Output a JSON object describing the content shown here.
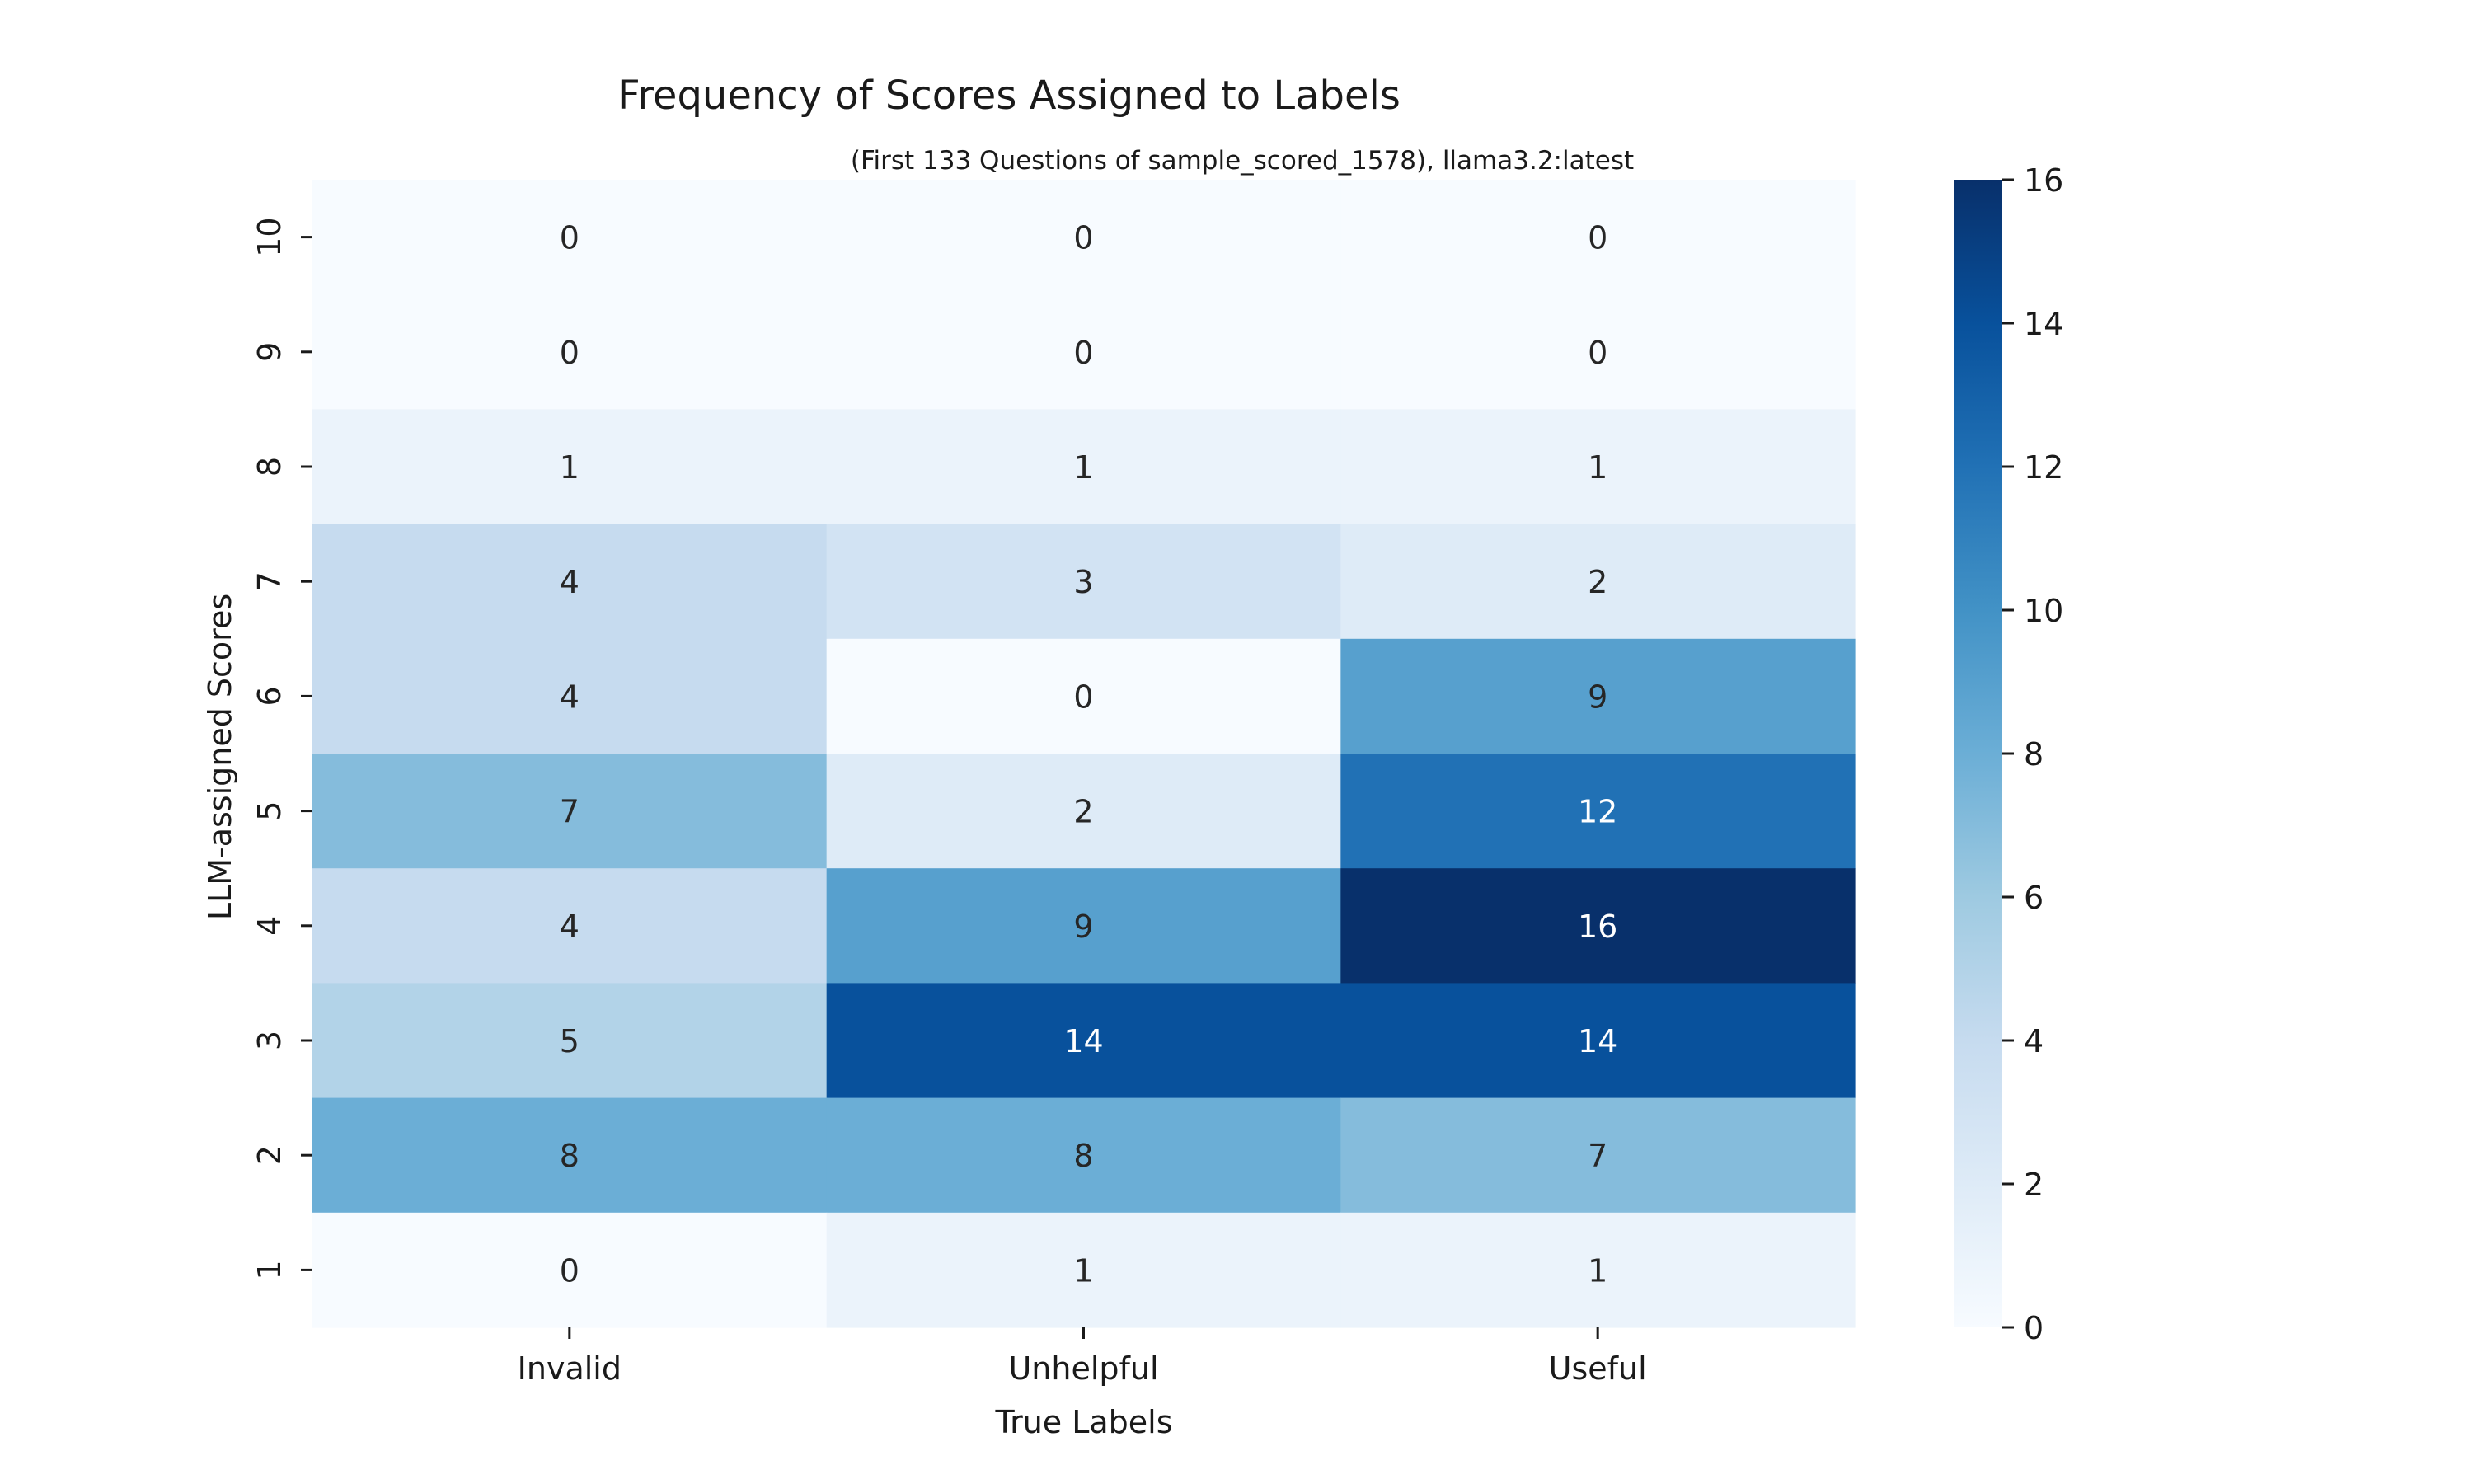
{
  "chart_data": {
    "type": "heatmap",
    "title": "Frequency of Scores Assigned to Labels",
    "subtitle": "(First 133 Questions of sample_scored_1578), llama3.2:latest",
    "xlabel": "True Labels",
    "ylabel": "LLM-assigned Scores",
    "x_categories": [
      "Invalid",
      "Unhelpful",
      "Useful"
    ],
    "y_categories": [
      "10",
      "9",
      "8",
      "7",
      "6",
      "5",
      "4",
      "3",
      "2",
      "1"
    ],
    "values": [
      [
        0,
        0,
        0
      ],
      [
        0,
        0,
        0
      ],
      [
        1,
        1,
        1
      ],
      [
        4,
        3,
        2
      ],
      [
        4,
        0,
        9
      ],
      [
        7,
        2,
        12
      ],
      [
        4,
        9,
        16
      ],
      [
        5,
        14,
        14
      ],
      [
        8,
        8,
        7
      ],
      [
        0,
        1,
        1
      ]
    ],
    "colormap": "Blues",
    "colorbar": {
      "min": 0,
      "max": 16,
      "ticks": [
        0,
        2,
        4,
        6,
        8,
        10,
        12,
        14,
        16
      ]
    },
    "annotations": true
  }
}
